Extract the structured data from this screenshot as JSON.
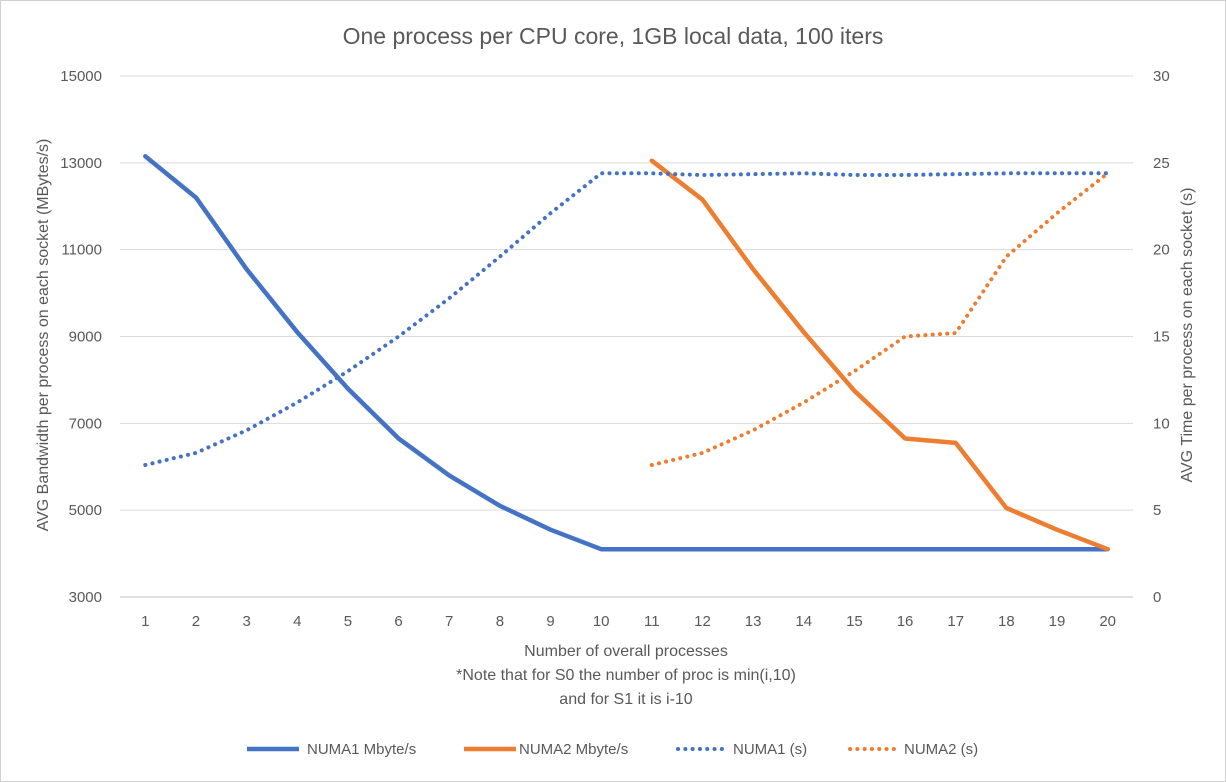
{
  "chart_data": {
    "type": "line",
    "title": "One process per CPU core, 1GB local data, 100 iters",
    "xlabel_lines": [
      "Number of overall processes",
      "*Note that for S0 the number of proc is min(i,10)",
      "and for S1 it is i-10"
    ],
    "ylabel_left": "AVG Bandwidth per process on each socket (MBytes/s)",
    "ylabel_right": "AVG Time per process on each socket (s)",
    "x": [
      1,
      2,
      3,
      4,
      5,
      6,
      7,
      8,
      9,
      10,
      11,
      12,
      13,
      14,
      15,
      16,
      17,
      18,
      19,
      20
    ],
    "x_tick_labels": [
      "1",
      "2",
      "3",
      "4",
      "5",
      "6",
      "7",
      "8",
      "9",
      "10",
      "11",
      "12",
      "13",
      "14",
      "15",
      "16",
      "17",
      "18",
      "19",
      "20"
    ],
    "ylim_left": [
      3000,
      15000
    ],
    "yticks_left": [
      "3000",
      "5000",
      "7000",
      "9000",
      "11000",
      "13000",
      "15000"
    ],
    "ylim_right": [
      0,
      30
    ],
    "yticks_right": [
      "0",
      "5",
      "10",
      "15",
      "20",
      "25",
      "30"
    ],
    "grid": true,
    "legend_position": "bottom",
    "series": [
      {
        "name": "NUMA1 Mbyte/s",
        "axis": "left",
        "style": "solid",
        "color": "#4472C4",
        "x": [
          1,
          2,
          3,
          4,
          5,
          6,
          7,
          8,
          9,
          10,
          11,
          12,
          13,
          14,
          15,
          16,
          17,
          18,
          19,
          20
        ],
        "values": [
          13150,
          12200,
          10550,
          9100,
          7800,
          6650,
          5800,
          5100,
          4550,
          4100,
          4100,
          4100,
          4100,
          4100,
          4100,
          4100,
          4100,
          4100,
          4100,
          4100
        ]
      },
      {
        "name": "NUMA2 Mbyte/s",
        "axis": "left",
        "style": "solid",
        "color": "#ED7D31",
        "x": [
          11,
          12,
          13,
          14,
          15,
          16,
          17,
          18,
          19,
          20
        ],
        "values": [
          13050,
          12150,
          10550,
          9100,
          7750,
          6650,
          6550,
          5050,
          4550,
          4100
        ]
      },
      {
        "name": "NUMA1 (s)",
        "axis": "right",
        "style": "dotted",
        "color": "#4472C4",
        "x": [
          1,
          2,
          3,
          4,
          5,
          6,
          7,
          8,
          9,
          10,
          11,
          12,
          13,
          14,
          15,
          16,
          17,
          18,
          19,
          20
        ],
        "values": [
          7.6,
          8.3,
          9.6,
          11.2,
          13.0,
          15.0,
          17.2,
          19.6,
          22.1,
          24.4,
          24.4,
          24.3,
          24.35,
          24.4,
          24.3,
          24.3,
          24.35,
          24.4,
          24.4,
          24.4
        ]
      },
      {
        "name": "NUMA2 (s)",
        "axis": "right",
        "style": "dotted",
        "color": "#ED7D31",
        "x": [
          11,
          12,
          13,
          14,
          15,
          16,
          17,
          18,
          19,
          20
        ],
        "values": [
          7.6,
          8.3,
          9.6,
          11.2,
          13.0,
          15.0,
          15.2,
          19.6,
          22.1,
          24.4
        ]
      }
    ]
  }
}
